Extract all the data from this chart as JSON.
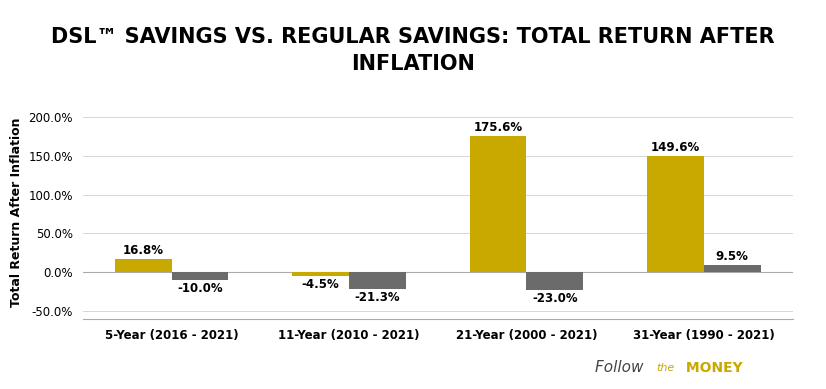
{
  "title": "DSL™ SAVINGS VS. REGULAR SAVINGS: TOTAL RETURN AFTER\nINFLATION",
  "ylabel": "Total Return After Inflation",
  "categories": [
    "5-Year (2016 - 2021)",
    "11-Year (2010 - 2021)",
    "21-Year (2000 - 2021)",
    "31-Year (1990 - 2021)"
  ],
  "dsl_values": [
    16.8,
    -4.5,
    175.6,
    149.6
  ],
  "reg_values": [
    -10.0,
    -21.3,
    -23.0,
    9.5
  ],
  "dsl_labels": [
    "16.8%",
    "-4.5%",
    "175.6%",
    "149.6%"
  ],
  "reg_labels": [
    "-10.0%",
    "-21.3%",
    "-23.0%",
    "9.5%"
  ],
  "dsl_color": "#C9A800",
  "reg_color": "#6B6B6B",
  "ylim": [
    -60,
    215
  ],
  "yticks": [
    -50.0,
    0.0,
    50.0,
    100.0,
    150.0,
    200.0
  ],
  "ytick_labels": [
    "-50.0%",
    "0.0%",
    "50.0%",
    "100.0%",
    "150.0%",
    "200.0%"
  ],
  "bar_width": 0.32,
  "title_fontsize": 15,
  "label_fontsize": 8.5,
  "tick_fontsize": 8.5,
  "ylabel_fontsize": 9,
  "legend_fontsize": 9.5,
  "background_color": "#ffffff",
  "follow_text1": "Follow ",
  "follow_text2": "the",
  "follow_text3": " MONEY"
}
